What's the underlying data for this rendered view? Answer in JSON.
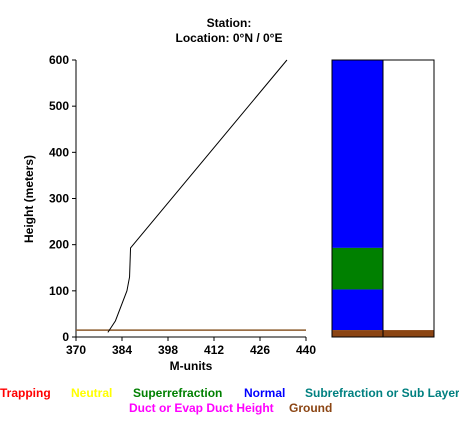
{
  "header": {
    "station_line": "Station:",
    "location_line": "Location:   0°N /   0°E"
  },
  "chart_data": {
    "type": "line",
    "xlabel": "M-units",
    "ylabel": "Height (meters)",
    "xlim": [
      370,
      440
    ],
    "ylim": [
      0,
      600
    ],
    "x_ticks": [
      "370",
      "384",
      "398",
      "412",
      "426",
      "440"
    ],
    "y_ticks": [
      "0",
      "100",
      "200",
      "300",
      "400",
      "500",
      "600"
    ],
    "grid": false,
    "series": [
      {
        "x": [
          379.7,
          382.0,
          385.5,
          386.3,
          386.6,
          434.2
        ],
        "y": [
          10,
          35,
          100,
          130,
          193,
          600
        ]
      }
    ],
    "ground_height": 15,
    "colors": {
      "line": "#000000",
      "ground": "#8b5a2b"
    }
  },
  "legend_bars": {
    "left_bar": [
      {
        "category": "Normal",
        "from": 193,
        "to": 600
      },
      {
        "category": "Superrefraction",
        "from": 103,
        "to": 193
      },
      {
        "category": "Normal",
        "from": 15,
        "to": 103
      },
      {
        "category": "Ground",
        "from": 0,
        "to": 15
      }
    ],
    "right_bar": [
      {
        "category": "Ground",
        "from": 0,
        "to": 15
      }
    ]
  },
  "legend": {
    "items": [
      {
        "label": "Trapping",
        "color": "#ff0000"
      },
      {
        "label": "Neutral",
        "color": "#ffff00"
      },
      {
        "label": "Superrefraction",
        "color": "#008000"
      },
      {
        "label": "Normal",
        "color": "#0000ff"
      },
      {
        "label": "Subrefraction or Sub Layer",
        "color": "#008080"
      },
      {
        "label": "Duct or Evap Duct Height",
        "color": "#ff00ff"
      },
      {
        "label": "Ground",
        "color": "#8b4513"
      }
    ]
  }
}
